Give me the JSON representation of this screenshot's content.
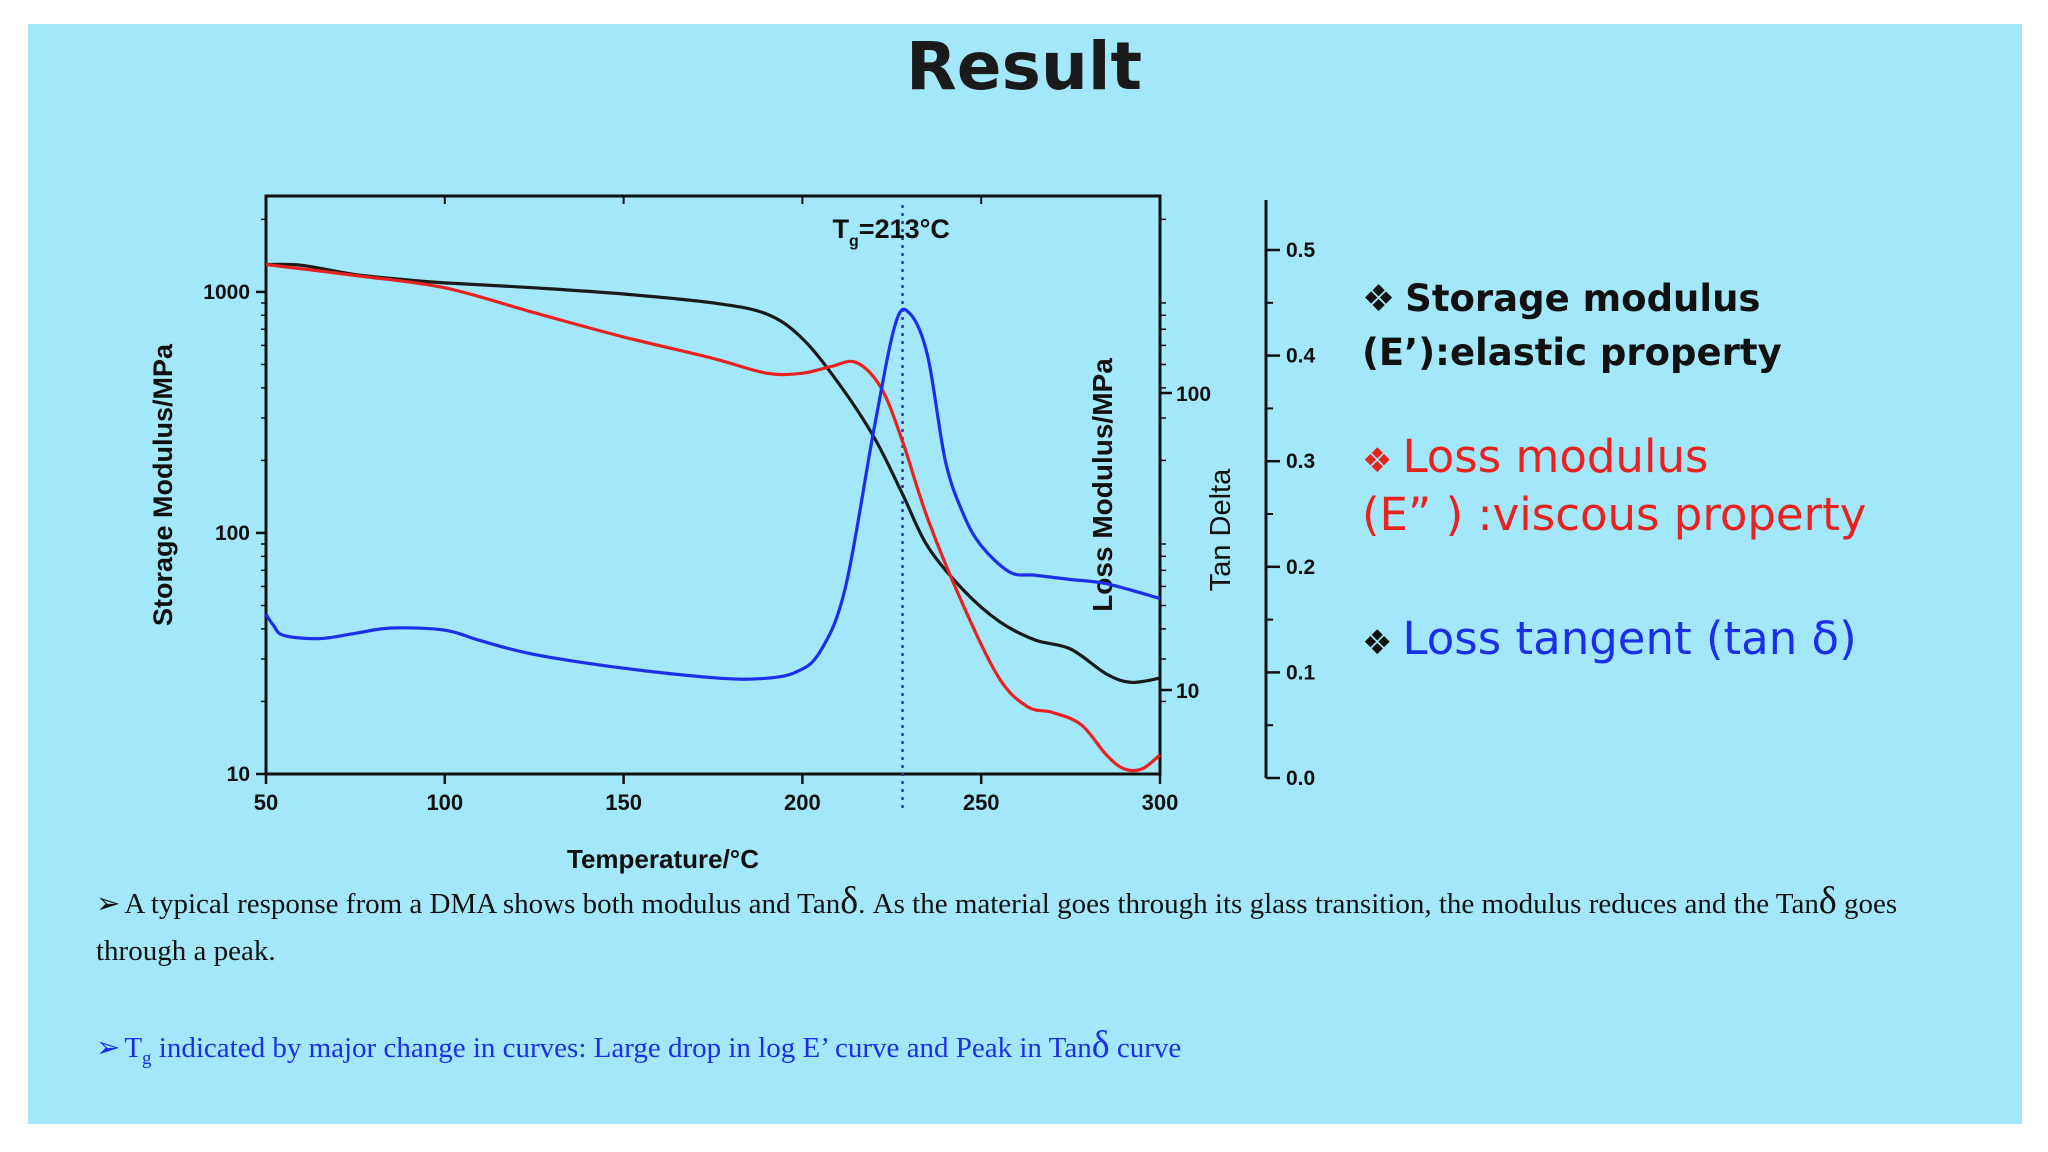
{
  "title": "Result",
  "chart_data": {
    "type": "line",
    "x_ticks": [
      50,
      100,
      150,
      200,
      250,
      300
    ],
    "xlim": [
      50,
      300
    ],
    "xlabel": "Temperature/°C",
    "y_left": {
      "label": "Storage Modulus/MPa",
      "scale": "log",
      "lim": [
        10,
        2500
      ],
      "ticks": [
        "10",
        "100",
        "1000"
      ],
      "tick_values": [
        10,
        100,
        1000
      ]
    },
    "y_loss": {
      "label": "Loss Modulus/MPa",
      "scale": "log",
      "ticks": [
        "10",
        "100"
      ]
    },
    "y_tan": {
      "label": "Tan Delta",
      "lim": [
        0,
        0.5
      ],
      "ticks": [
        "0.0",
        "0.1",
        "0.2",
        "0.3",
        "0.4",
        "0.5"
      ],
      "tick_values": [
        0,
        0.1,
        0.2,
        0.3,
        0.4,
        0.5
      ]
    },
    "annotation": {
      "text": "T",
      "sub": "g",
      "suffix": "=213°C",
      "x": 228
    },
    "series": [
      {
        "key": "storage",
        "color": "#1a1a1a",
        "axis": "left_log",
        "points": [
          [
            50,
            1300
          ],
          [
            60,
            1290
          ],
          [
            75,
            1180
          ],
          [
            90,
            1120
          ],
          [
            100,
            1090
          ],
          [
            125,
            1040
          ],
          [
            150,
            980
          ],
          [
            175,
            900
          ],
          [
            190,
            810
          ],
          [
            200,
            640
          ],
          [
            210,
            420
          ],
          [
            220,
            250
          ],
          [
            228,
            145
          ],
          [
            235,
            88
          ],
          [
            245,
            58
          ],
          [
            255,
            43
          ],
          [
            265,
            36
          ],
          [
            275,
            33
          ],
          [
            285,
            26
          ],
          [
            292,
            24
          ],
          [
            300,
            25
          ]
        ]
      },
      {
        "key": "loss",
        "color": "#e8221f",
        "axis": "left_log",
        "points": [
          [
            50,
            1300
          ],
          [
            75,
            1170
          ],
          [
            100,
            1040
          ],
          [
            125,
            820
          ],
          [
            150,
            650
          ],
          [
            175,
            530
          ],
          [
            190,
            460
          ],
          [
            200,
            460
          ],
          [
            208,
            490
          ],
          [
            215,
            510
          ],
          [
            222,
            400
          ],
          [
            228,
            240
          ],
          [
            235,
            115
          ],
          [
            245,
            50
          ],
          [
            255,
            25
          ],
          [
            263,
            19
          ],
          [
            270,
            18
          ],
          [
            278,
            16
          ],
          [
            285,
            12
          ],
          [
            290,
            10.5
          ],
          [
            295,
            10.5
          ],
          [
            300,
            12
          ]
        ]
      },
      {
        "key": "tan",
        "color": "#1a2fe8",
        "axis": "right_tan",
        "points": [
          [
            50,
            0.155
          ],
          [
            52,
            0.145
          ],
          [
            55,
            0.135
          ],
          [
            65,
            0.132
          ],
          [
            75,
            0.137
          ],
          [
            85,
            0.142
          ],
          [
            100,
            0.14
          ],
          [
            110,
            0.13
          ],
          [
            125,
            0.117
          ],
          [
            150,
            0.104
          ],
          [
            175,
            0.095
          ],
          [
            188,
            0.094
          ],
          [
            198,
            0.1
          ],
          [
            205,
            0.12
          ],
          [
            212,
            0.18
          ],
          [
            220,
            0.33
          ],
          [
            226,
            0.43
          ],
          [
            230,
            0.44
          ],
          [
            235,
            0.4
          ],
          [
            240,
            0.3
          ],
          [
            245,
            0.25
          ],
          [
            250,
            0.22
          ],
          [
            258,
            0.195
          ],
          [
            265,
            0.192
          ],
          [
            275,
            0.188
          ],
          [
            285,
            0.184
          ],
          [
            300,
            0.17
          ]
        ]
      }
    ]
  },
  "legend": {
    "bullet": "❖",
    "storage_line1": "Storage modulus",
    "storage_line2": "(E’):elastic property",
    "loss_line1": "Loss modulus",
    "loss_line2": "(E”  ) :viscous property",
    "tan_text": "Loss tangent (tan δ)"
  },
  "notes": {
    "arrow": "➢",
    "note1_a": "A typical response from a DMA shows both modulus and Tan",
    "note1_delta": "δ",
    "note1_b": ". As the material goes through its glass transition, the modulus reduces and the Tan",
    "note1_delta2": "δ",
    "note1_c": " goes through a peak.",
    "note2_t": "T",
    "note2_sub": "g",
    "note2_a": " indicated by major change in curves: Large drop in log E’ curve and Peak in Tan",
    "note2_delta": "δ",
    "note2_b": "  curve"
  }
}
